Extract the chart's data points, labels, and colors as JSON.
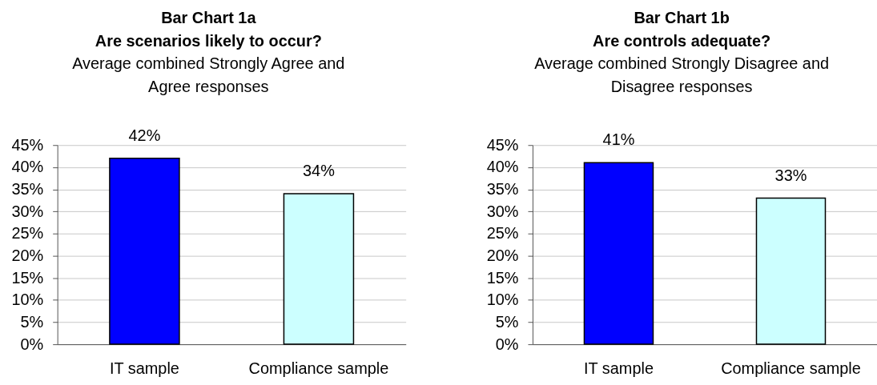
{
  "chart_data": [
    {
      "type": "bar",
      "title": "Bar Chart 1a\nAre scenarios likely to occur?",
      "subtitle": "Average combined Strongly Agree and\nAgree responses",
      "categories": [
        "IT sample",
        "Compliance sample"
      ],
      "values": [
        42,
        34
      ],
      "colors": [
        "#0000ff",
        "#ccffff"
      ],
      "value_labels": [
        "42%",
        "34%"
      ],
      "ylim": [
        0,
        45
      ],
      "yticks": [
        {
          "value": 0,
          "label": "0%"
        },
        {
          "value": 5,
          "label": "5%"
        },
        {
          "value": 10,
          "label": "10%"
        },
        {
          "value": 15,
          "label": "15%"
        },
        {
          "value": 20,
          "label": "20%"
        },
        {
          "value": 25,
          "label": "25%"
        },
        {
          "value": 30,
          "label": "30%"
        },
        {
          "value": 35,
          "label": "35%"
        },
        {
          "value": 40,
          "label": "40%"
        },
        {
          "value": 45,
          "label": "45%"
        }
      ],
      "grid": "y"
    },
    {
      "type": "bar",
      "title": "Bar Chart 1b\nAre controls adequate?",
      "subtitle": "Average combined Strongly Disagree and\nDisagree responses",
      "categories": [
        "IT sample",
        "Compliance sample"
      ],
      "values": [
        41,
        33
      ],
      "colors": [
        "#0000ff",
        "#ccffff"
      ],
      "value_labels": [
        "41%",
        "33%"
      ],
      "ylim": [
        0,
        45
      ],
      "yticks": [
        {
          "value": 0,
          "label": "0%"
        },
        {
          "value": 5,
          "label": "5%"
        },
        {
          "value": 10,
          "label": "10%"
        },
        {
          "value": 15,
          "label": "15%"
        },
        {
          "value": 20,
          "label": "20%"
        },
        {
          "value": 25,
          "label": "25%"
        },
        {
          "value": 30,
          "label": "30%"
        },
        {
          "value": 35,
          "label": "35%"
        },
        {
          "value": 40,
          "label": "40%"
        },
        {
          "value": 45,
          "label": "45%"
        }
      ],
      "grid": "y"
    }
  ]
}
